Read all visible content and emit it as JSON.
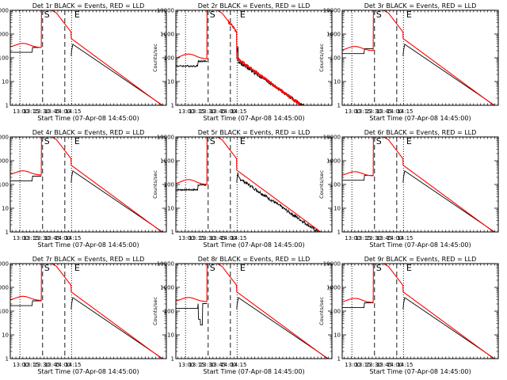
{
  "chart_data": {
    "type": "line",
    "shared": {
      "ylabel": "Counts/sec",
      "xlabel": "Start Time (07-Apr-08 14:45:00)",
      "yscale": "log",
      "ylim": [
        1,
        10000
      ],
      "yticks": [
        {
          "v": 1,
          "label": "1"
        },
        {
          "v": 10,
          "label": "10"
        },
        {
          "v": 100,
          "label": "100"
        },
        {
          "v": 1000,
          "label": "1000"
        },
        {
          "v": 10000,
          "label": "10000"
        }
      ],
      "xlim": [
        12.75,
        16.47
      ],
      "xticks": [
        {
          "v": 13.0,
          "label": "13:00"
        },
        {
          "v": 13.25,
          "label": "13:15"
        },
        {
          "v": 13.5,
          "label": "13:30"
        },
        {
          "v": 13.75,
          "label": "13:45"
        },
        {
          "v": 14.0,
          "label": "14:00"
        },
        {
          "v": 14.25,
          "label": "14:15"
        }
      ],
      "markers": [
        "S",
        "E"
      ],
      "series_colors": {
        "events": "#000000",
        "lld": "#ff0000"
      }
    },
    "panels": [
      {
        "title": "Det 1r BLACK = Events, RED = LLD",
        "variant": 1
      },
      {
        "title": "Det 2r BLACK = Events, RED = LLD",
        "variant": 2
      },
      {
        "title": "Det 3r BLACK = Events, RED = LLD",
        "variant": 3
      },
      {
        "title": "Det 4r BLACK = Events, RED = LLD",
        "variant": 4
      },
      {
        "title": "Det 5r BLACK = Events, RED = LLD",
        "variant": 5
      },
      {
        "title": "Det 6r BLACK = Events, RED = LLD",
        "variant": 6
      },
      {
        "title": "Det 7r BLACK = Events, RED = LLD",
        "variant": 7
      },
      {
        "title": "Det 8r BLACK = Events, RED = LLD",
        "variant": 8
      },
      {
        "title": "Det 9r BLACK = Events, RED = LLD",
        "variant": 9
      }
    ]
  }
}
